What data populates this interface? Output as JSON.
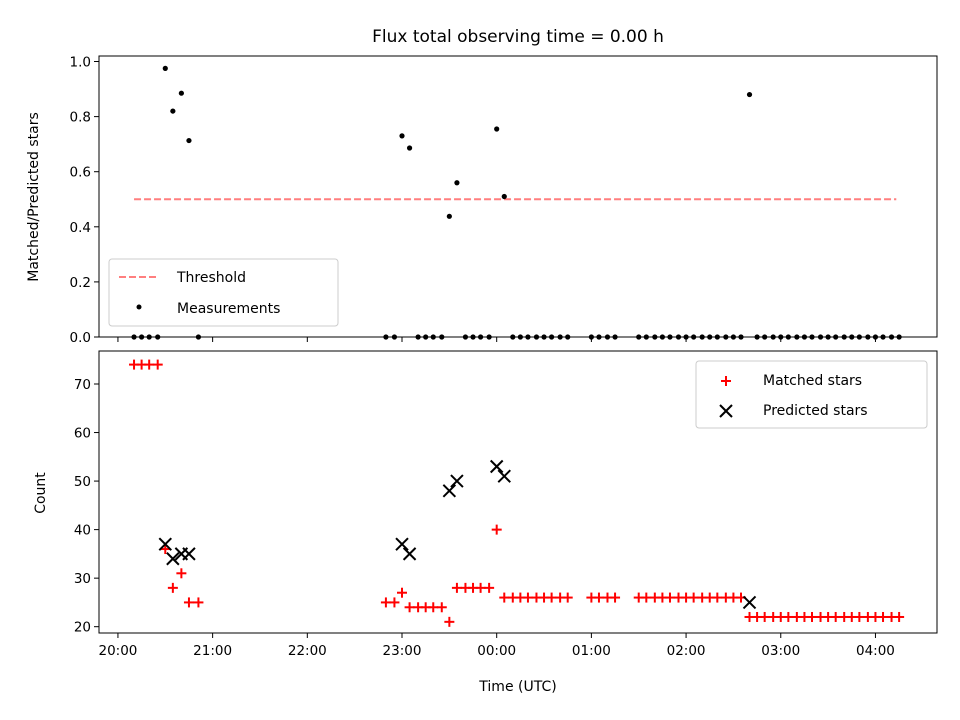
{
  "chart_data": [
    {
      "type": "scatter",
      "title": "Flux total observing time = 0.00 h",
      "xlabel": "",
      "ylabel": "Matched/Predicted stars",
      "xlim": [
        19.8,
        28.65
      ],
      "ylim": [
        0.0,
        1.02
      ],
      "yticks": [
        0.0,
        0.2,
        0.4,
        0.6,
        0.8,
        1.0
      ],
      "ytick_labels": [
        "0.0",
        "0.2",
        "0.4",
        "0.6",
        "0.8",
        "1.0"
      ],
      "xticks": [
        20,
        21,
        22,
        23,
        24,
        25,
        26,
        27,
        28
      ],
      "xtick_labels": [],
      "legend_position": "lower-left",
      "threshold": {
        "name": "Threshold",
        "y": 0.5,
        "x_start": 20.17,
        "x_end": 28.22,
        "color": "#ff7f7f",
        "style": "dashed"
      },
      "series": [
        {
          "name": "Measurements",
          "color": "#000000",
          "marker": "dot",
          "points": [
            [
              20.17,
              0.0
            ],
            [
              20.25,
              0.0
            ],
            [
              20.33,
              0.0
            ],
            [
              20.42,
              0.0
            ],
            [
              20.5,
              0.975
            ],
            [
              20.58,
              0.82
            ],
            [
              20.67,
              0.885
            ],
            [
              20.75,
              0.713
            ],
            [
              20.85,
              0.0
            ],
            [
              22.83,
              0.0
            ],
            [
              22.92,
              0.0
            ],
            [
              23.0,
              0.73
            ],
            [
              23.08,
              0.686
            ],
            [
              23.17,
              0.0
            ],
            [
              23.25,
              0.0
            ],
            [
              23.33,
              0.0
            ],
            [
              23.42,
              0.0
            ],
            [
              23.5,
              0.438
            ],
            [
              23.58,
              0.56
            ],
            [
              23.67,
              0.0
            ],
            [
              23.75,
              0.0
            ],
            [
              23.83,
              0.0
            ],
            [
              23.92,
              0.0
            ],
            [
              24.0,
              0.755
            ],
            [
              24.08,
              0.51
            ],
            [
              24.17,
              0.0
            ],
            [
              24.25,
              0.0
            ],
            [
              24.33,
              0.0
            ],
            [
              24.42,
              0.0
            ],
            [
              24.5,
              0.0
            ],
            [
              24.58,
              0.0
            ],
            [
              24.67,
              0.0
            ],
            [
              24.75,
              0.0
            ],
            [
              25.0,
              0.0
            ],
            [
              25.08,
              0.0
            ],
            [
              25.17,
              0.0
            ],
            [
              25.25,
              0.0
            ],
            [
              25.5,
              0.0
            ],
            [
              25.58,
              0.0
            ],
            [
              25.67,
              0.0
            ],
            [
              25.75,
              0.0
            ],
            [
              25.83,
              0.0
            ],
            [
              25.92,
              0.0
            ],
            [
              26.0,
              0.0
            ],
            [
              26.08,
              0.0
            ],
            [
              26.17,
              0.0
            ],
            [
              26.25,
              0.0
            ],
            [
              26.33,
              0.0
            ],
            [
              26.42,
              0.0
            ],
            [
              26.5,
              0.0
            ],
            [
              26.58,
              0.0
            ],
            [
              26.67,
              0.88
            ],
            [
              26.75,
              0.0
            ],
            [
              26.83,
              0.0
            ],
            [
              26.92,
              0.0
            ],
            [
              27.0,
              0.0
            ],
            [
              27.08,
              0.0
            ],
            [
              27.17,
              0.0
            ],
            [
              27.25,
              0.0
            ],
            [
              27.33,
              0.0
            ],
            [
              27.42,
              0.0
            ],
            [
              27.5,
              0.0
            ],
            [
              27.58,
              0.0
            ],
            [
              27.67,
              0.0
            ],
            [
              27.75,
              0.0
            ],
            [
              27.83,
              0.0
            ],
            [
              27.92,
              0.0
            ],
            [
              28.0,
              0.0
            ],
            [
              28.08,
              0.0
            ],
            [
              28.17,
              0.0
            ],
            [
              28.25,
              0.0
            ]
          ]
        }
      ]
    },
    {
      "type": "scatter",
      "title": "",
      "xlabel": "Time (UTC)",
      "ylabel": "Count",
      "xlim": [
        19.8,
        28.65
      ],
      "ylim": [
        18.7,
        76.8
      ],
      "yticks": [
        20,
        30,
        40,
        50,
        60,
        70
      ],
      "ytick_labels": [
        "20",
        "30",
        "40",
        "50",
        "60",
        "70"
      ],
      "xticks": [
        20,
        21,
        22,
        23,
        24,
        25,
        26,
        27,
        28
      ],
      "xtick_labels": [
        "20:00",
        "21:00",
        "22:00",
        "23:00",
        "00:00",
        "01:00",
        "02:00",
        "03:00",
        "04:00"
      ],
      "legend_position": "top-right",
      "series": [
        {
          "name": "Matched stars",
          "color": "#ff0000",
          "marker": "plus",
          "points": [
            [
              20.17,
              74
            ],
            [
              20.25,
              74
            ],
            [
              20.33,
              74
            ],
            [
              20.42,
              74
            ],
            [
              20.5,
              36
            ],
            [
              20.58,
              28
            ],
            [
              20.67,
              31
            ],
            [
              20.75,
              25
            ],
            [
              20.85,
              25
            ],
            [
              22.83,
              25
            ],
            [
              22.92,
              25
            ],
            [
              23.0,
              27
            ],
            [
              23.08,
              24
            ],
            [
              23.17,
              24
            ],
            [
              23.25,
              24
            ],
            [
              23.33,
              24
            ],
            [
              23.42,
              24
            ],
            [
              23.5,
              21
            ],
            [
              23.58,
              28
            ],
            [
              23.67,
              28
            ],
            [
              23.75,
              28
            ],
            [
              23.83,
              28
            ],
            [
              23.92,
              28
            ],
            [
              24.0,
              40
            ],
            [
              24.08,
              26
            ],
            [
              24.17,
              26
            ],
            [
              24.25,
              26
            ],
            [
              24.33,
              26
            ],
            [
              24.42,
              26
            ],
            [
              24.5,
              26
            ],
            [
              24.58,
              26
            ],
            [
              24.67,
              26
            ],
            [
              24.75,
              26
            ],
            [
              25.0,
              26
            ],
            [
              25.08,
              26
            ],
            [
              25.17,
              26
            ],
            [
              25.25,
              26
            ],
            [
              25.5,
              26
            ],
            [
              25.58,
              26
            ],
            [
              25.67,
              26
            ],
            [
              25.75,
              26
            ],
            [
              25.83,
              26
            ],
            [
              25.92,
              26
            ],
            [
              26.0,
              26
            ],
            [
              26.08,
              26
            ],
            [
              26.17,
              26
            ],
            [
              26.25,
              26
            ],
            [
              26.33,
              26
            ],
            [
              26.42,
              26
            ],
            [
              26.5,
              26
            ],
            [
              26.58,
              26
            ],
            [
              26.67,
              22
            ],
            [
              26.75,
              22
            ],
            [
              26.83,
              22
            ],
            [
              26.92,
              22
            ],
            [
              27.0,
              22
            ],
            [
              27.08,
              22
            ],
            [
              27.17,
              22
            ],
            [
              27.25,
              22
            ],
            [
              27.33,
              22
            ],
            [
              27.42,
              22
            ],
            [
              27.5,
              22
            ],
            [
              27.58,
              22
            ],
            [
              27.67,
              22
            ],
            [
              27.75,
              22
            ],
            [
              27.83,
              22
            ],
            [
              27.92,
              22
            ],
            [
              28.0,
              22
            ],
            [
              28.08,
              22
            ],
            [
              28.17,
              22
            ],
            [
              28.25,
              22
            ]
          ]
        },
        {
          "name": "Predicted stars",
          "color": "#000000",
          "marker": "x",
          "points": [
            [
              20.5,
              37
            ],
            [
              20.58,
              34
            ],
            [
              20.67,
              35
            ],
            [
              20.75,
              35
            ],
            [
              23.0,
              37
            ],
            [
              23.08,
              35
            ],
            [
              23.5,
              48
            ],
            [
              23.58,
              50
            ],
            [
              24.0,
              53
            ],
            [
              24.08,
              51
            ],
            [
              26.67,
              25
            ]
          ]
        }
      ]
    }
  ]
}
